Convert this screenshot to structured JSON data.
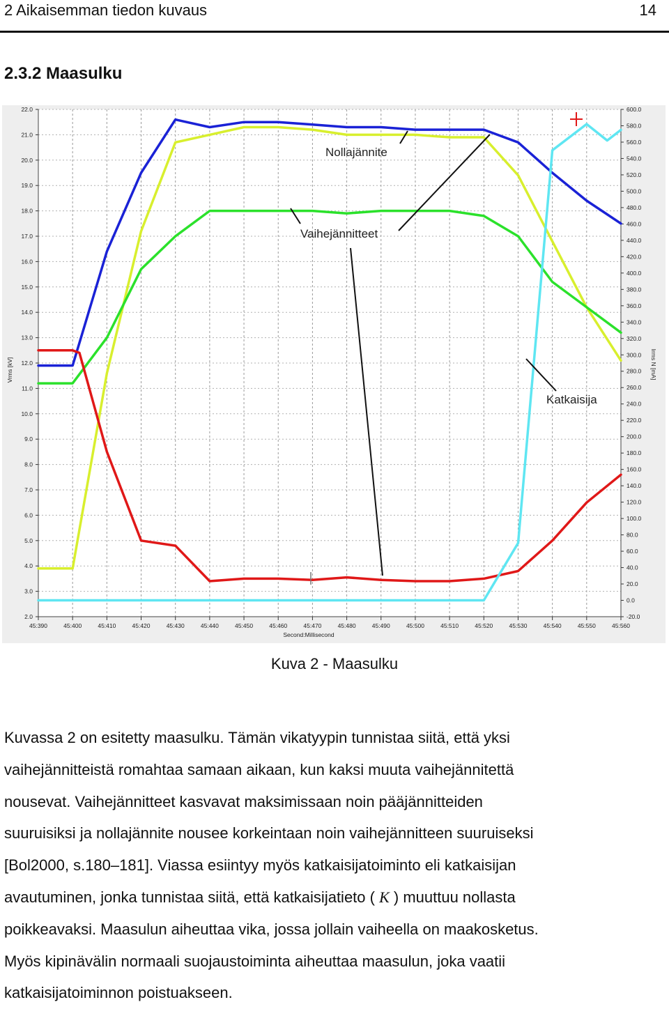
{
  "header": {
    "chapter": "2 Aikaisemman tiedon kuvaus",
    "page": "14"
  },
  "section_title": "2.3.2 Maasulku",
  "caption": "Kuva 2 - Maasulku",
  "paragraph": {
    "lines": [
      "Kuvassa 2 on esitetty maasulku. Tämän vikatyypin tunnistaa siitä, että yksi",
      "vaihejännitteistä romahtaa samaan aikaan, kun kaksi muuta vaihejännitettä",
      "nousevat. Vaihejännitteet kasvavat maksimissaan noin pääjännitteiden",
      "suuruisiksi ja nollajännite nousee korkeintaan noin vaihejännitteen suuruiseksi",
      "[Bol2000, s.180–181]. Viassa esiintyy myös katkaisijatoiminto eli katkaisijan"
    ],
    "line6_before": "avautuminen, jonka tunnistaa siitä, että katkaisijatieto ( ",
    "line6_symbol": "K",
    "line6_after": " ) muuttuu nollasta",
    "lines_end": [
      "poikkeavaksi. Maasulun aiheuttaa vika, jossa jollain vaiheella on maakosketus.",
      "Myös kipinävälin normaali suojaustoiminta aiheuttaa maasulun, joka vaatii",
      "katkaisijatoiminnon poistuakseen."
    ]
  },
  "chart_data": {
    "type": "line",
    "title": "",
    "xlabel": "Second:Millisecond",
    "ylabel_left": "Vrms [kV]",
    "ylabel_right": "Irms N [mA]",
    "x_ticks": [
      "45:390",
      "45:400",
      "45:410",
      "45:420",
      "45:430",
      "45:440",
      "45:450",
      "45:460",
      "45:470",
      "45:480",
      "45:490",
      "45:500",
      "45:510",
      "45:520",
      "45:530",
      "45:540",
      "45:550",
      "45:560"
    ],
    "xlim": [
      45.39,
      45.56
    ],
    "y_left_ticks": [
      "22.0",
      "21.0",
      "20.0",
      "19.0",
      "18.0",
      "17.0",
      "16.0",
      "15.0",
      "14.0",
      "13.0",
      "12.0",
      "11.0",
      "10.0",
      "9.0",
      "8.0",
      "7.0",
      "6.0",
      "5.0",
      "4.0",
      "3.0",
      "2.0"
    ],
    "ylim_left": [
      2,
      22
    ],
    "y_right_ticks": [
      "600.0",
      "580.0",
      "560.0",
      "540.0",
      "520.0",
      "500.0",
      "480.0",
      "460.0",
      "440.0",
      "420.0",
      "400.0",
      "380.0",
      "360.0",
      "340.0",
      "320.0",
      "300.0",
      "280.0",
      "260.0",
      "240.0",
      "220.0",
      "200.0",
      "180.0",
      "160.0",
      "140.0",
      "120.0",
      "100.0",
      "80.0",
      "60.0",
      "40.0",
      "20.0",
      "0.0",
      "-20.0"
    ],
    "ylim_right": [
      -20,
      600
    ],
    "grid": true,
    "series": [
      {
        "color": "#1a22d6",
        "axis": "left",
        "x": [
          45.39,
          45.4,
          45.41,
          45.42,
          45.43,
          45.44,
          45.45,
          45.46,
          45.47,
          45.48,
          45.49,
          45.5,
          45.51,
          45.52,
          45.53,
          45.54,
          45.55,
          45.56
        ],
        "y": [
          11.9,
          11.9,
          16.4,
          19.5,
          21.6,
          21.3,
          21.5,
          21.5,
          21.4,
          21.3,
          21.3,
          21.2,
          21.2,
          21.2,
          20.7,
          19.5,
          18.4,
          17.5
        ]
      },
      {
        "color": "#d8ef2e",
        "axis": "left",
        "x": [
          45.39,
          45.4,
          45.41,
          45.42,
          45.43,
          45.44,
          45.45,
          45.46,
          45.47,
          45.48,
          45.49,
          45.5,
          45.51,
          45.52,
          45.53,
          45.54,
          45.55,
          45.56
        ],
        "y": [
          3.9,
          3.9,
          11.6,
          17.2,
          20.7,
          21.0,
          21.3,
          21.3,
          21.2,
          21.0,
          21.0,
          21.0,
          20.9,
          20.9,
          19.4,
          16.8,
          14.2,
          12.1
        ]
      },
      {
        "color": "#2be12b",
        "axis": "left",
        "x": [
          45.39,
          45.4,
          45.41,
          45.42,
          45.43,
          45.44,
          45.45,
          45.46,
          45.47,
          45.48,
          45.49,
          45.5,
          45.51,
          45.52,
          45.53,
          45.54,
          45.55,
          45.56
        ],
        "y": [
          11.2,
          11.2,
          13.0,
          15.7,
          17.0,
          18.0,
          18.0,
          18.0,
          18.0,
          17.9,
          18.0,
          18.0,
          18.0,
          17.8,
          17.0,
          15.2,
          14.2,
          13.2
        ]
      },
      {
        "color": "#e01818",
        "axis": "left",
        "x": [
          45.39,
          45.4,
          45.402,
          45.41,
          45.42,
          45.43,
          45.44,
          45.45,
          45.46,
          45.47,
          45.48,
          45.49,
          45.5,
          45.51,
          45.52,
          45.53,
          45.54,
          45.55,
          45.56
        ],
        "y": [
          12.5,
          12.5,
          12.4,
          8.5,
          5.0,
          4.8,
          3.4,
          3.5,
          3.5,
          3.45,
          3.55,
          3.45,
          3.4,
          3.4,
          3.5,
          3.8,
          5.0,
          6.5,
          7.6
        ]
      },
      {
        "color": "#5fe6f2",
        "axis": "right",
        "x": [
          45.39,
          45.4,
          45.41,
          45.42,
          45.43,
          45.44,
          45.45,
          45.46,
          45.47,
          45.48,
          45.49,
          45.5,
          45.51,
          45.52,
          45.53,
          45.54,
          45.55,
          45.556,
          45.56
        ],
        "y": [
          0,
          0,
          0,
          0,
          0,
          0,
          0,
          0,
          0,
          0,
          0,
          0,
          0,
          0,
          70,
          550,
          582,
          562,
          575
        ]
      }
    ],
    "annotations": [
      {
        "text": "Nollajännite"
      },
      {
        "text": "Vaihejännitteet"
      },
      {
        "text": "Katkaisija"
      }
    ]
  }
}
